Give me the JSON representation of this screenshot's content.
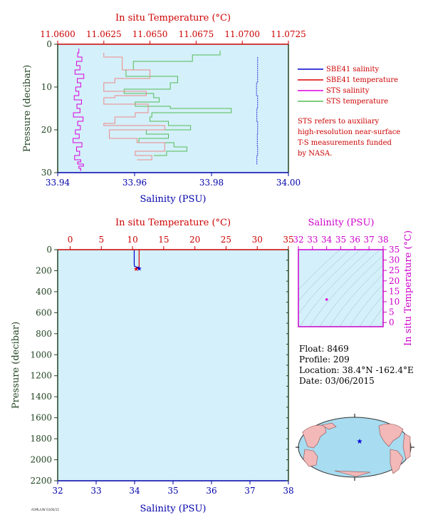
{
  "colors": {
    "plot_bg": "#d4f0fa",
    "sbe_salinity": "#0000cc",
    "sbe_temperature": "#dd0000",
    "sts_salinity": "#dd00dd",
    "sts_temperature": "#55bb55",
    "sts_temperature_top": "#ee8888",
    "axis_red": "#cc0000",
    "axis_blue": "#0000aa",
    "axis_green": "#224422",
    "axis_magenta": "#cc00cc"
  },
  "chart_data": [
    {
      "type": "line",
      "panel": "top",
      "title_top_axis": "In situ Temperature (°C)",
      "xlabel": "Salinity (PSU)",
      "ylabel": "Pressure (decibar)",
      "x_salinity_range": [
        33.94,
        34.0
      ],
      "x_salinity_ticks": [
        "33.94",
        "33.96",
        "33.98",
        "34.00"
      ],
      "x_temperature_range": [
        11.06,
        11.0725
      ],
      "x_temperature_ticks": [
        "11.0600",
        "11.0625",
        "11.0650",
        "11.0675",
        "11.0700",
        "11.0725"
      ],
      "y_pressure_range": [
        30,
        0
      ],
      "y_ticks": [
        "0",
        "10",
        "20",
        "30"
      ],
      "legend": [
        {
          "name": "SBE41 salinity",
          "color_key": "sbe_salinity"
        },
        {
          "name": "SBE41 temperature",
          "color_key": "sbe_temperature"
        },
        {
          "name": "STS salinity",
          "color_key": "sts_salinity"
        },
        {
          "name": "STS temperature",
          "color_key": "sts_temperature"
        }
      ],
      "note": [
        "STS refers to auxiliary",
        "high-resolution near-surface",
        "T-S measurements funded",
        "by NASA."
      ],
      "series": [
        {
          "name": "STS salinity",
          "x_kind": "salinity",
          "x": [
            33.9455,
            33.9452,
            33.9463,
            33.9449,
            33.9458,
            33.9445,
            33.9468,
            33.9451,
            33.946,
            33.9447,
            33.9455,
            33.9443,
            33.9462,
            33.945,
            33.9458,
            33.9441,
            33.9466,
            33.9452,
            33.9459,
            33.9446,
            33.9456,
            33.944,
            33.9463,
            33.9449,
            33.9457,
            33.9444,
            33.946,
            33.9452,
            33.9467,
            33.9455,
            33.946,
            33.9458
          ],
          "y": [
            1,
            2,
            3,
            4,
            5,
            6,
            7,
            8,
            9,
            10,
            11,
            12,
            13,
            14,
            15,
            16,
            17,
            18,
            19,
            20,
            21,
            22,
            23,
            24,
            25,
            26,
            27,
            27.5,
            28,
            28.5,
            29,
            29.5
          ]
        },
        {
          "name": "STS temperature",
          "x_kind": "temperature",
          "x": [
            11.0688,
            11.0673,
            11.0641,
            11.0637,
            11.0665,
            11.0661,
            11.0636,
            11.0652,
            11.0655,
            11.0642,
            11.0661,
            11.0694,
            11.0651,
            11.065,
            11.066,
            11.0672,
            11.0648,
            11.066,
            11.0644,
            11.0663,
            11.067,
            11.0659,
            11.0652
          ],
          "y": [
            1.5,
            2.5,
            4,
            6,
            7.5,
            9,
            10.5,
            11.5,
            12.5,
            13.5,
            14.5,
            15,
            16,
            17,
            18,
            19,
            20,
            21,
            22,
            23,
            24,
            25,
            26
          ]
        },
        {
          "name": "STS temperature (upper)",
          "x_kind": "temperature",
          "x": [
            11.0625,
            11.0635,
            11.065,
            11.0631,
            11.0625,
            11.0648,
            11.0631,
            11.0625,
            11.0649,
            11.0642,
            11.0631,
            11.0625,
            11.0658,
            11.0628,
            11.0643,
            11.0658,
            11.0642,
            11.0651,
            11.0643
          ],
          "y": [
            2,
            3,
            6,
            8,
            9,
            11,
            12,
            12.5,
            14,
            16,
            17,
            18.5,
            19,
            20,
            22,
            23,
            25,
            26,
            27
          ]
        },
        {
          "name": "SBE41 salinity",
          "x_kind": "salinity",
          "x": [
            33.992,
            33.992,
            33.9917,
            33.992,
            33.9918,
            33.992,
            33.9919,
            33.992,
            33.9918,
            33.992
          ],
          "y": [
            3,
            6,
            9,
            12,
            15,
            18,
            21,
            24,
            26,
            28
          ]
        }
      ]
    },
    {
      "type": "line",
      "panel": "main",
      "title_top_axis": "In situ Temperature (°C)",
      "xlabel": "Salinity (PSU)",
      "ylabel": "Pressure (decibar)",
      "x_temperature_range": [
        -2,
        35
      ],
      "x_temperature_ticks": [
        "0",
        "5",
        "10",
        "15",
        "20",
        "25",
        "30",
        "35"
      ],
      "x_salinity_range": [
        32,
        38
      ],
      "x_salinity_ticks": [
        "32",
        "33",
        "34",
        "35",
        "36",
        "37",
        "38"
      ],
      "y_pressure_range": [
        2200,
        0
      ],
      "y_ticks": [
        "0",
        "200",
        "400",
        "600",
        "800",
        "1000",
        "1200",
        "1400",
        "1600",
        "1800",
        "2000",
        "2200"
      ],
      "series": [
        {
          "name": "SBE41 temperature",
          "x_kind": "temperature",
          "x": [
            11.06,
            11.06,
            11.0,
            10.6
          ],
          "y": [
            0,
            150,
            165,
            175
          ]
        },
        {
          "name": "SBE41 salinity",
          "x_kind": "salinity",
          "x": [
            33.99,
            33.99,
            34.0,
            34.12
          ],
          "y": [
            0,
            140,
            160,
            172
          ]
        }
      ]
    },
    {
      "type": "scatter",
      "panel": "ts_diagram",
      "xlabel": "Salinity (PSU)",
      "ylabel": "In situ Temperature (°C)",
      "x_range": [
        32,
        38
      ],
      "x_ticks": [
        "32",
        "33",
        "34",
        "35",
        "36",
        "37",
        "38"
      ],
      "y_range": [
        -2,
        35
      ],
      "y_ticks": [
        "0",
        "5",
        "10",
        "15",
        "20",
        "25",
        "30",
        "35"
      ],
      "points": [
        {
          "x": 34.0,
          "y": 11.06
        }
      ]
    }
  ],
  "info": {
    "float": "Float:  8469",
    "profile": "Profile:  209",
    "location": "Location:  38.4°N  -162.4°E",
    "date": "Date:  03/06/2015"
  },
  "footer": "AOML/UW  03/06/15"
}
